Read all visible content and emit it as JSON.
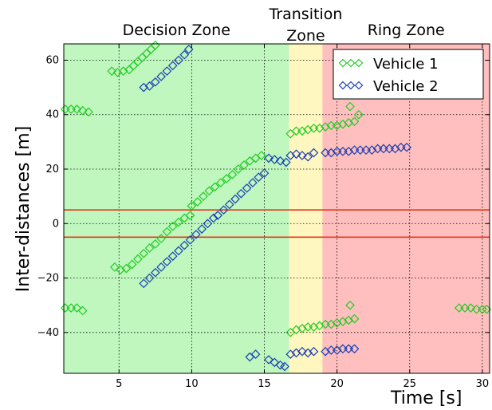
{
  "chart_data": {
    "type": "scatter",
    "xlabel": "Time [s]",
    "ylabel": "Inter-distances [m]",
    "xlim": [
      1.2,
      30.5
    ],
    "ylim": [
      -55,
      66
    ],
    "xticks": [
      5,
      10,
      15,
      20,
      25,
      30
    ],
    "yticks": [
      -40,
      -20,
      0,
      20,
      40,
      60
    ],
    "grid": true,
    "legend_position": "top-right",
    "zones": [
      {
        "label": "Decision Zone",
        "x_start": 1.2,
        "x_end": 16.7,
        "color": "#bff7bf"
      },
      {
        "label": "Transition Zone",
        "x_start": 16.7,
        "x_end": 19.0,
        "color": "#fff7bf"
      },
      {
        "label": "Ring Zone",
        "x_start": 19.0,
        "x_end": 30.5,
        "color": "#ffbfbf"
      }
    ],
    "threshold_lines": [
      5,
      -5
    ],
    "threshold_color": "#e03a1a",
    "series": [
      {
        "name": "Vehicle 1",
        "color": "#22cc22",
        "marker": "diamond",
        "points": [
          [
            1.3,
            42
          ],
          [
            1.7,
            42
          ],
          [
            2.1,
            42
          ],
          [
            2.5,
            41.5
          ],
          [
            2.9,
            41
          ],
          [
            4.5,
            56
          ],
          [
            4.9,
            55.5
          ],
          [
            5.3,
            56
          ],
          [
            5.7,
            56.5
          ],
          [
            6.0,
            58
          ],
          [
            6.3,
            59.5
          ],
          [
            6.6,
            61
          ],
          [
            6.9,
            62.5
          ],
          [
            7.2,
            64
          ],
          [
            7.5,
            65.5
          ],
          [
            4.7,
            -16
          ],
          [
            5.1,
            -17
          ],
          [
            5.5,
            -16.5
          ],
          [
            5.9,
            -15
          ],
          [
            6.3,
            -13
          ],
          [
            6.7,
            -11
          ],
          [
            7.1,
            -9
          ],
          [
            7.5,
            -7.5
          ],
          [
            7.9,
            -5.5
          ],
          [
            8.3,
            -3
          ],
          [
            8.7,
            -1
          ],
          [
            9.1,
            0.5
          ],
          [
            9.5,
            2
          ],
          [
            9.9,
            3
          ],
          [
            10.0,
            6.5
          ],
          [
            10.4,
            8
          ],
          [
            10.8,
            10
          ],
          [
            11.2,
            12
          ],
          [
            11.6,
            13.5
          ],
          [
            12.0,
            15
          ],
          [
            12.4,
            16.5
          ],
          [
            12.8,
            18
          ],
          [
            13.2,
            20
          ],
          [
            13.6,
            21.5
          ],
          [
            14.0,
            23
          ],
          [
            14.4,
            24
          ],
          [
            14.8,
            25
          ],
          [
            16.8,
            33
          ],
          [
            17.2,
            34
          ],
          [
            17.6,
            34
          ],
          [
            18.0,
            34.5
          ],
          [
            18.4,
            35
          ],
          [
            18.8,
            35
          ],
          [
            19.2,
            35.5
          ],
          [
            19.6,
            36
          ],
          [
            20.0,
            36
          ],
          [
            20.4,
            36.5
          ],
          [
            20.8,
            37
          ],
          [
            21.2,
            37.5
          ],
          [
            20.9,
            43
          ],
          [
            21.5,
            40
          ],
          [
            16.8,
            -40
          ],
          [
            17.2,
            -39
          ],
          [
            17.6,
            -38.5
          ],
          [
            18.0,
            -38
          ],
          [
            18.4,
            -38
          ],
          [
            18.8,
            -37.5
          ],
          [
            19.2,
            -37
          ],
          [
            19.6,
            -37
          ],
          [
            20.0,
            -36.5
          ],
          [
            20.4,
            -36
          ],
          [
            20.8,
            -35.5
          ],
          [
            21.2,
            -35
          ],
          [
            20.9,
            -30
          ],
          [
            1.3,
            -31
          ],
          [
            1.7,
            -31
          ],
          [
            2.1,
            -31
          ],
          [
            2.5,
            -32
          ],
          [
            28.4,
            -31
          ],
          [
            28.8,
            -31
          ],
          [
            29.2,
            -31
          ],
          [
            29.6,
            -31.5
          ],
          [
            30.0,
            -31.5
          ],
          [
            30.3,
            -31.5
          ]
        ]
      },
      {
        "name": "Vehicle 2",
        "color": "#1a3fb3",
        "marker": "diamond",
        "points": [
          [
            6.7,
            50
          ],
          [
            7.1,
            50.5
          ],
          [
            7.5,
            52
          ],
          [
            7.9,
            54
          ],
          [
            8.3,
            56
          ],
          [
            8.7,
            58
          ],
          [
            9.1,
            60
          ],
          [
            9.5,
            62
          ],
          [
            9.8,
            64
          ],
          [
            6.7,
            -22
          ],
          [
            7.1,
            -20
          ],
          [
            7.5,
            -18
          ],
          [
            7.9,
            -16
          ],
          [
            8.3,
            -14
          ],
          [
            8.7,
            -12
          ],
          [
            9.1,
            -10
          ],
          [
            9.5,
            -8
          ],
          [
            9.9,
            -6
          ],
          [
            10.3,
            -4
          ],
          [
            10.7,
            -2
          ],
          [
            11.1,
            0
          ],
          [
            11.5,
            2
          ],
          [
            11.8,
            3
          ],
          [
            12.2,
            5
          ],
          [
            12.6,
            7
          ],
          [
            13.0,
            9
          ],
          [
            13.4,
            11
          ],
          [
            13.8,
            13
          ],
          [
            14.2,
            15
          ],
          [
            14.6,
            17
          ],
          [
            15.0,
            18.5
          ],
          [
            15.3,
            24
          ],
          [
            15.7,
            23.5
          ],
          [
            16.1,
            23
          ],
          [
            16.5,
            22.5
          ],
          [
            16.8,
            25
          ],
          [
            17.2,
            25.5
          ],
          [
            17.6,
            25
          ],
          [
            18.0,
            24.5
          ],
          [
            18.4,
            26
          ],
          [
            19.2,
            26
          ],
          [
            19.6,
            26
          ],
          [
            20.0,
            26.5
          ],
          [
            20.4,
            26.5
          ],
          [
            20.8,
            26.5
          ],
          [
            21.2,
            27
          ],
          [
            21.6,
            27
          ],
          [
            22.0,
            27
          ],
          [
            22.4,
            27
          ],
          [
            22.8,
            27.5
          ],
          [
            23.2,
            27.5
          ],
          [
            23.6,
            27.5
          ],
          [
            24.0,
            27.5
          ],
          [
            24.4,
            28
          ],
          [
            24.8,
            28
          ],
          [
            14.0,
            -49
          ],
          [
            14.4,
            -48
          ],
          [
            15.3,
            -50
          ],
          [
            15.7,
            -51
          ],
          [
            16.1,
            -52
          ],
          [
            16.4,
            -52.5
          ],
          [
            16.8,
            -48
          ],
          [
            17.2,
            -47.5
          ],
          [
            17.6,
            -47
          ],
          [
            18.0,
            -47.5
          ],
          [
            18.4,
            -47
          ],
          [
            19.2,
            -47
          ],
          [
            19.6,
            -46.5
          ],
          [
            20.0,
            -46.5
          ],
          [
            20.4,
            -46
          ],
          [
            20.8,
            -46
          ],
          [
            21.2,
            -46
          ]
        ]
      }
    ]
  }
}
